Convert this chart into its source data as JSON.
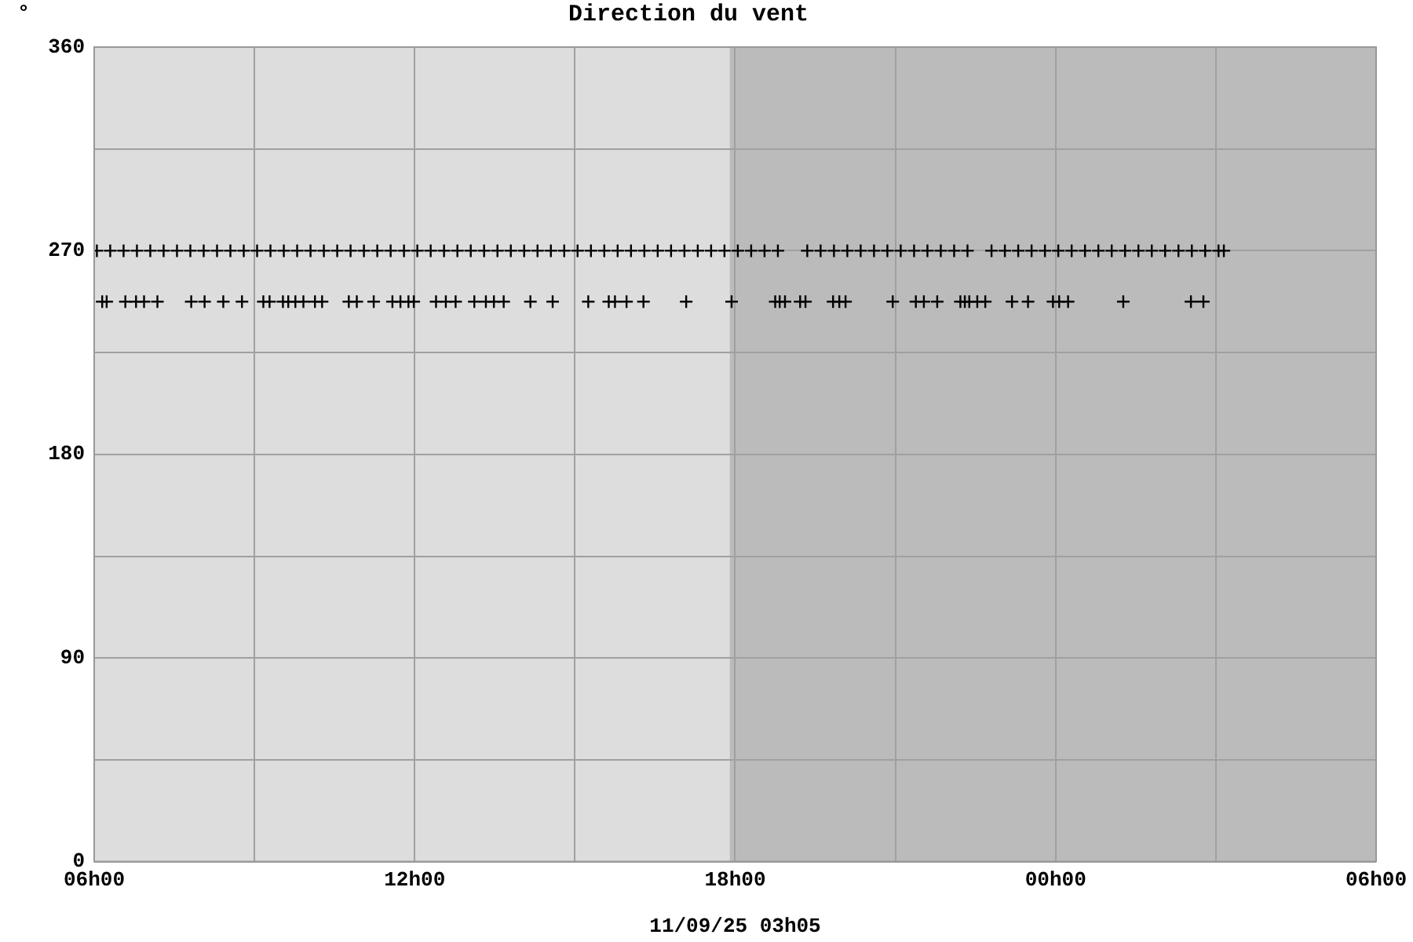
{
  "chart_data": {
    "type": "scatter",
    "title": "Direction du vent",
    "ylabel": "°",
    "xlabel": "11/09/25 03h05",
    "marker": "cross",
    "grid": true,
    "legend": false,
    "xlim": [
      "--09-10T06:00",
      "--09-11T06:00"
    ],
    "xticks": [
      {
        "value": "--09-10T06:00",
        "label": "06h00"
      },
      {
        "value": "--09-10T09:00",
        "label": null
      },
      {
        "value": "--09-10T12:00",
        "label": "12h00"
      },
      {
        "value": "--09-10T15:00",
        "label": null
      },
      {
        "value": "--09-10T18:00",
        "label": "18h00"
      },
      {
        "value": "--09-10T21:00",
        "label": null
      },
      {
        "value": "--09-11T00:00",
        "label": "00h00"
      },
      {
        "value": "--09-11T03:00",
        "label": null
      },
      {
        "value": "--09-11T06:00",
        "label": "06h00"
      }
    ],
    "ylim": [
      0,
      360
    ],
    "yticks": [
      0,
      {
        "value": 45,
        "label": null
      },
      90,
      {
        "value": 135,
        "label": null
      },
      180,
      {
        "value": 225,
        "label": null
      },
      270,
      {
        "value": 315,
        "label": null
      },
      360
    ],
    "bands": [
      {
        "axis": "x",
        "from": "--09-10T17:54",
        "to": "--09-11T06:00",
        "color": "#bbbbbb"
      }
    ],
    "series": [
      {
        "color": "#000000",
        "x": [
          "--09-10T06:03",
          "--09-10T06:18",
          "--09-10T06:33",
          "--09-10T06:48",
          "--09-10T07:03",
          "--09-10T07:18",
          "--09-10T07:33",
          "--09-10T07:48",
          "--09-10T08:03",
          "--09-10T08:18",
          "--09-10T08:33",
          "--09-10T08:48",
          "--09-10T09:03",
          "--09-10T09:18",
          "--09-10T09:33",
          "--09-10T09:48",
          "--09-10T10:03",
          "--09-10T10:18",
          "--09-10T10:33",
          "--09-10T10:48",
          "--09-10T11:03",
          "--09-10T11:18",
          "--09-10T11:33",
          "--09-10T11:48",
          "--09-10T12:03",
          "--09-10T12:18",
          "--09-10T12:33",
          "--09-10T12:48",
          "--09-10T13:03",
          "--09-10T13:18",
          "--09-10T13:33",
          "--09-10T13:48",
          "--09-10T14:03",
          "--09-10T14:18",
          "--09-10T14:33",
          "--09-10T14:48",
          "--09-10T15:03",
          "--09-10T15:18",
          "--09-10T15:33",
          "--09-10T15:48",
          "--09-10T16:03",
          "--09-10T16:18",
          "--09-10T16:33",
          "--09-10T16:48",
          "--09-10T17:03",
          "--09-10T17:18",
          "--09-10T17:33",
          "--09-10T17:48",
          "--09-10T18:03",
          "--09-10T18:18",
          "--09-10T18:33",
          "--09-10T18:48",
          "--09-10T19:21",
          "--09-10T19:36",
          "--09-10T19:51",
          "--09-10T20:06",
          "--09-10T20:21",
          "--09-10T20:36",
          "--09-10T20:51",
          "--09-10T21:06",
          "--09-10T21:21",
          "--09-10T21:36",
          "--09-10T21:51",
          "--09-10T22:06",
          "--09-10T22:21",
          "--09-10T22:48",
          "--09-10T23:03",
          "--09-10T23:18",
          "--09-10T23:33",
          "--09-10T23:48",
          "--09-11T00:03",
          "--09-11T00:18",
          "--09-11T00:33",
          "--09-11T00:48",
          "--09-11T01:03",
          "--09-11T01:18",
          "--09-11T01:33",
          "--09-11T01:48",
          "--09-11T02:03",
          "--09-11T02:18",
          "--09-11T02:33",
          "--09-11T02:48",
          "--09-11T03:03",
          "--09-11T03:09"
        ],
        "values": [
          270,
          270,
          270,
          270,
          270,
          270,
          270,
          270,
          270,
          270,
          270,
          270,
          270,
          270,
          270,
          270,
          270,
          270,
          270,
          270,
          270,
          270,
          270,
          270,
          270,
          270,
          270,
          270,
          270,
          270,
          270,
          270,
          270,
          270,
          270,
          270,
          270,
          270,
          270,
          270,
          270,
          270,
          270,
          270,
          270,
          270,
          270,
          270,
          270,
          270,
          270,
          270,
          270,
          270,
          270,
          270,
          270,
          270,
          270,
          270,
          270,
          270,
          270,
          270,
          270,
          270,
          270,
          270,
          270,
          270,
          270,
          270,
          270,
          270,
          270,
          270,
          270,
          270,
          270,
          270,
          270,
          270,
          270,
          270
        ]
      },
      {
        "color": "#000000",
        "x": [
          "--09-10T06:09",
          "--09-10T06:14",
          "--09-10T06:35",
          "--09-10T06:47",
          "--09-10T06:56",
          "--09-10T07:11",
          "--09-10T07:49",
          "--09-10T08:04",
          "--09-10T08:25",
          "--09-10T08:46",
          "--09-10T09:10",
          "--09-10T09:17",
          "--09-10T09:32",
          "--09-10T09:38",
          "--09-10T09:46",
          "--09-10T09:55",
          "--09-10T10:08",
          "--09-10T10:16",
          "--09-10T10:46",
          "--09-10T10:55",
          "--09-10T11:14",
          "--09-10T11:35",
          "--09-10T11:44",
          "--09-10T11:53",
          "--09-10T11:59",
          "--09-10T12:24",
          "--09-10T12:35",
          "--09-10T12:46",
          "--09-10T13:07",
          "--09-10T13:20",
          "--09-10T13:29",
          "--09-10T13:40",
          "--09-10T14:10",
          "--09-10T14:35",
          "--09-10T15:15",
          "--09-10T15:38",
          "--09-10T15:45",
          "--09-10T15:58",
          "--09-10T16:17",
          "--09-10T17:05",
          "--09-10T17:56",
          "--09-10T18:45",
          "--09-10T18:50",
          "--09-10T18:56",
          "--09-10T19:13",
          "--09-10T19:19",
          "--09-10T19:50",
          "--09-10T19:57",
          "--09-10T20:04",
          "--09-10T20:57",
          "--09-10T21:23",
          "--09-10T21:32",
          "--09-10T21:47",
          "--09-10T22:13",
          "--09-10T22:18",
          "--09-10T22:23",
          "--09-10T22:32",
          "--09-10T22:41",
          "--09-10T23:11",
          "--09-10T23:29",
          "--09-10T23:57",
          "--09-11T00:04",
          "--09-11T00:14",
          "--09-11T01:16",
          "--09-11T02:32",
          "--09-11T02:46"
        ],
        "values": [
          247.5,
          247.5,
          247.5,
          247.5,
          247.5,
          247.5,
          247.5,
          247.5,
          247.5,
          247.5,
          247.5,
          247.5,
          247.5,
          247.5,
          247.5,
          247.5,
          247.5,
          247.5,
          247.5,
          247.5,
          247.5,
          247.5,
          247.5,
          247.5,
          247.5,
          247.5,
          247.5,
          247.5,
          247.5,
          247.5,
          247.5,
          247.5,
          247.5,
          247.5,
          247.5,
          247.5,
          247.5,
          247.5,
          247.5,
          247.5,
          247.5,
          247.5,
          247.5,
          247.5,
          247.5,
          247.5,
          247.5,
          247.5,
          247.5,
          247.5,
          247.5,
          247.5,
          247.5,
          247.5,
          247.5,
          247.5,
          247.5,
          247.5,
          247.5,
          247.5,
          247.5,
          247.5,
          247.5,
          247.5,
          247.5,
          247.5
        ]
      }
    ]
  }
}
